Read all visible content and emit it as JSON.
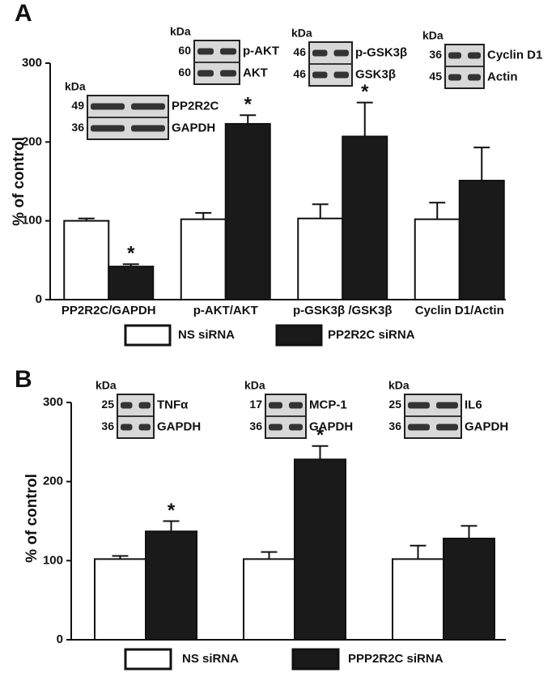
{
  "chart_data": [
    {
      "type": "bar",
      "panel": "A",
      "ylabel": "% of control",
      "categories": [
        "PP2R2C/GAPDH",
        "p-AKT/AKT",
        "p-GSK3β /GSK3β",
        "Cyclin D1/Actin"
      ],
      "series": [
        {
          "name": "NS siRNA",
          "color": "#ffffff",
          "values": [
            100,
            102,
            103,
            102
          ],
          "errors": [
            3,
            8,
            18,
            21
          ]
        },
        {
          "name": "PP2R2C siRNA",
          "color": "#1a1a1a",
          "values": [
            42,
            223,
            207,
            151
          ],
          "errors": [
            3,
            11,
            43,
            42
          ]
        }
      ],
      "annotations": [
        {
          "text": "*",
          "series": 1,
          "category": 0
        },
        {
          "text": "*",
          "series": 1,
          "category": 1
        },
        {
          "text": "*",
          "series": 1,
          "category": 2
        }
      ],
      "ylim": [
        0,
        300
      ],
      "yticks": [
        0,
        100,
        200,
        300
      ],
      "blots": [
        {
          "unit": "kDa",
          "rows": [
            {
              "kda": "49",
              "label": "PP2R2C"
            },
            {
              "kda": "36",
              "label": "GAPDH"
            }
          ]
        },
        {
          "unit": "kDa",
          "rows": [
            {
              "kda": "60",
              "label": "p-AKT"
            },
            {
              "kda": "60",
              "label": "AKT"
            }
          ]
        },
        {
          "unit": "kDa",
          "rows": [
            {
              "kda": "46",
              "label": "p-GSK3β"
            },
            {
              "kda": "46",
              "label": "GSK3β"
            }
          ]
        },
        {
          "unit": "kDa",
          "rows": [
            {
              "kda": "36",
              "label": "Cyclin D1"
            },
            {
              "kda": "45",
              "label": "Actin"
            }
          ]
        }
      ]
    },
    {
      "type": "bar",
      "panel": "B",
      "ylabel": "% of control",
      "categories": [
        null,
        null,
        null
      ],
      "series": [
        {
          "name": "NS siRNA",
          "color": "#ffffff",
          "values": [
            102,
            102,
            102
          ],
          "errors": [
            4,
            9,
            17
          ]
        },
        {
          "name": "PPP2R2C siRNA",
          "color": "#1a1a1a",
          "values": [
            137,
            228,
            128
          ],
          "errors": [
            13,
            17,
            16
          ]
        }
      ],
      "annotations": [
        {
          "text": "*",
          "series": 1,
          "category": 0
        },
        {
          "text": "*",
          "series": 1,
          "category": 1
        }
      ],
      "ylim": [
        0,
        300
      ],
      "yticks": [
        0,
        100,
        200,
        300
      ],
      "blots": [
        {
          "unit": "kDa",
          "rows": [
            {
              "kda": "25",
              "label": "TNFα"
            },
            {
              "kda": "36",
              "label": "GAPDH"
            }
          ]
        },
        {
          "unit": "kDa",
          "rows": [
            {
              "kda": "17",
              "label": "MCP-1"
            },
            {
              "kda": "36",
              "label": "GAPDH"
            }
          ]
        },
        {
          "unit": "kDa",
          "rows": [
            {
              "kda": "25",
              "label": "IL6"
            },
            {
              "kda": "36",
              "label": "GAPDH"
            }
          ]
        }
      ]
    }
  ]
}
